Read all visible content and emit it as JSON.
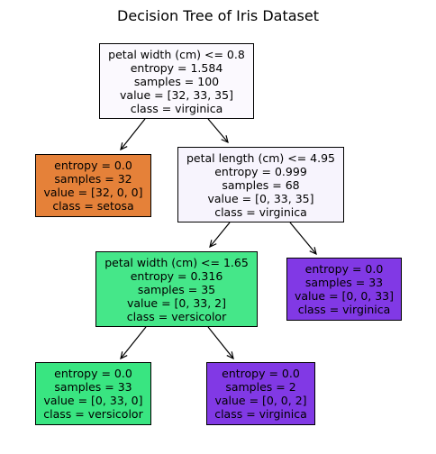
{
  "title": "Decision Tree of Iris Dataset",
  "class_colors": {
    "virginica": "#8139e5",
    "setosa": "#e58139",
    "versicolor": "#39e581"
  },
  "nodes": [
    {
      "id": "root",
      "split": "petal width (cm) <= 0.8",
      "entropy": "entropy = 1.584",
      "samples": "samples = 100",
      "value": "value = [32, 33, 35]",
      "class": "class = virginica",
      "fill": "#fbf9fe"
    },
    {
      "id": "setosa-leaf",
      "split": "",
      "entropy": "entropy = 0.0",
      "samples": "samples = 32",
      "value": "value = [32, 0, 0]",
      "class": "class = setosa",
      "fill": "#e58139"
    },
    {
      "id": "n2",
      "split": "petal length (cm) <= 4.95",
      "entropy": "entropy = 0.999",
      "samples": "samples = 68",
      "value": "value = [0, 33, 35]",
      "class": "class = virginica",
      "fill": "#f7f4fd"
    },
    {
      "id": "n3",
      "split": "petal width (cm) <= 1.65",
      "entropy": "entropy = 0.316",
      "samples": "samples = 35",
      "value": "value = [0, 33, 2]",
      "class": "class = versicolor",
      "fill": "#45e789"
    },
    {
      "id": "virginica-leaf-1",
      "split": "",
      "entropy": "entropy = 0.0",
      "samples": "samples = 33",
      "value": "value = [0, 0, 33]",
      "class": "class = virginica",
      "fill": "#8139e5"
    },
    {
      "id": "versicolor-leaf",
      "split": "",
      "entropy": "entropy = 0.0",
      "samples": "samples = 33",
      "value": "value = [0, 33, 0]",
      "class": "class = versicolor",
      "fill": "#39e581"
    },
    {
      "id": "virginica-leaf-2",
      "split": "",
      "entropy": "entropy = 0.0",
      "samples": "samples = 2",
      "value": "value = [0, 0, 2]",
      "class": "class = virginica",
      "fill": "#8139e5"
    }
  ],
  "edges": [
    {
      "from": "root",
      "to": "setosa-leaf"
    },
    {
      "from": "root",
      "to": "n2"
    },
    {
      "from": "n2",
      "to": "n3"
    },
    {
      "from": "n2",
      "to": "virginica-leaf-1"
    },
    {
      "from": "n3",
      "to": "versicolor-leaf"
    },
    {
      "from": "n3",
      "to": "virginica-leaf-2"
    }
  ]
}
